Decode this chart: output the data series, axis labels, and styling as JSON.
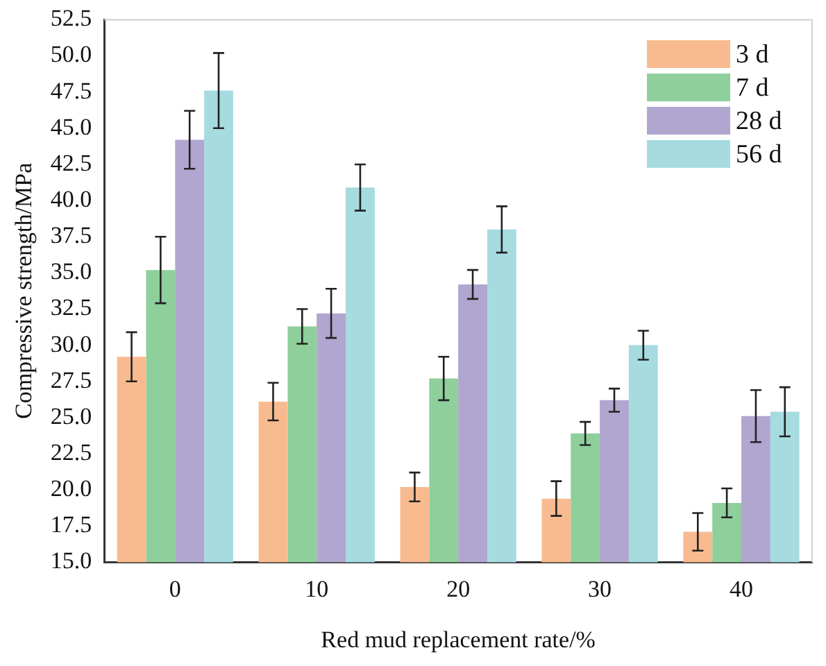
{
  "chart_data": {
    "type": "bar",
    "xlabel": "Red mud replacement rate/%",
    "ylabel": "Compressive strength/MPa",
    "categories": [
      "0",
      "10",
      "20",
      "30",
      "40"
    ],
    "series": [
      {
        "name": "3 d",
        "color": "#f8bb8f",
        "values": [
          29.2,
          26.1,
          20.2,
          19.4,
          17.1
        ],
        "errors": [
          1.7,
          1.3,
          1.0,
          1.2,
          1.3
        ]
      },
      {
        "name": "7 d",
        "color": "#8ecf9c",
        "values": [
          35.2,
          31.3,
          27.7,
          23.9,
          19.1
        ],
        "errors": [
          2.3,
          1.2,
          1.5,
          0.8,
          1.0
        ]
      },
      {
        "name": "28 d",
        "color": "#b1a6d0",
        "values": [
          44.2,
          32.2,
          34.2,
          26.2,
          25.1
        ],
        "errors": [
          2.0,
          1.7,
          1.0,
          0.8,
          1.8
        ]
      },
      {
        "name": "56 d",
        "color": "#a6dbe0",
        "values": [
          47.6,
          40.9,
          38.0,
          30.0,
          25.4
        ],
        "errors": [
          2.6,
          1.6,
          1.6,
          1.0,
          1.7
        ]
      }
    ],
    "ylim": [
      15,
      52.5
    ],
    "yticks": [
      {
        "value": 15,
        "label": "15.0"
      },
      {
        "value": 17.5,
        "label": "17.5"
      },
      {
        "value": 20,
        "label": "20.0"
      },
      {
        "value": 22.5,
        "label": "22.5"
      },
      {
        "value": 25,
        "label": "25.0"
      },
      {
        "value": 27.5,
        "label": "27.5"
      },
      {
        "value": 30,
        "label": "30.0"
      },
      {
        "value": 32.5,
        "label": "32.5"
      },
      {
        "value": 35,
        "label": "35.0"
      },
      {
        "value": 37.5,
        "label": "37.5"
      },
      {
        "value": 40,
        "label": "40.0"
      },
      {
        "value": 42.5,
        "label": "42.5"
      },
      {
        "value": 45,
        "label": "45.0"
      },
      {
        "value": 47.5,
        "label": "47.5"
      },
      {
        "value": 50,
        "label": "50.0"
      },
      {
        "value": 52.5,
        "label": "52.5"
      }
    ],
    "grid": false,
    "legend": "top right"
  }
}
